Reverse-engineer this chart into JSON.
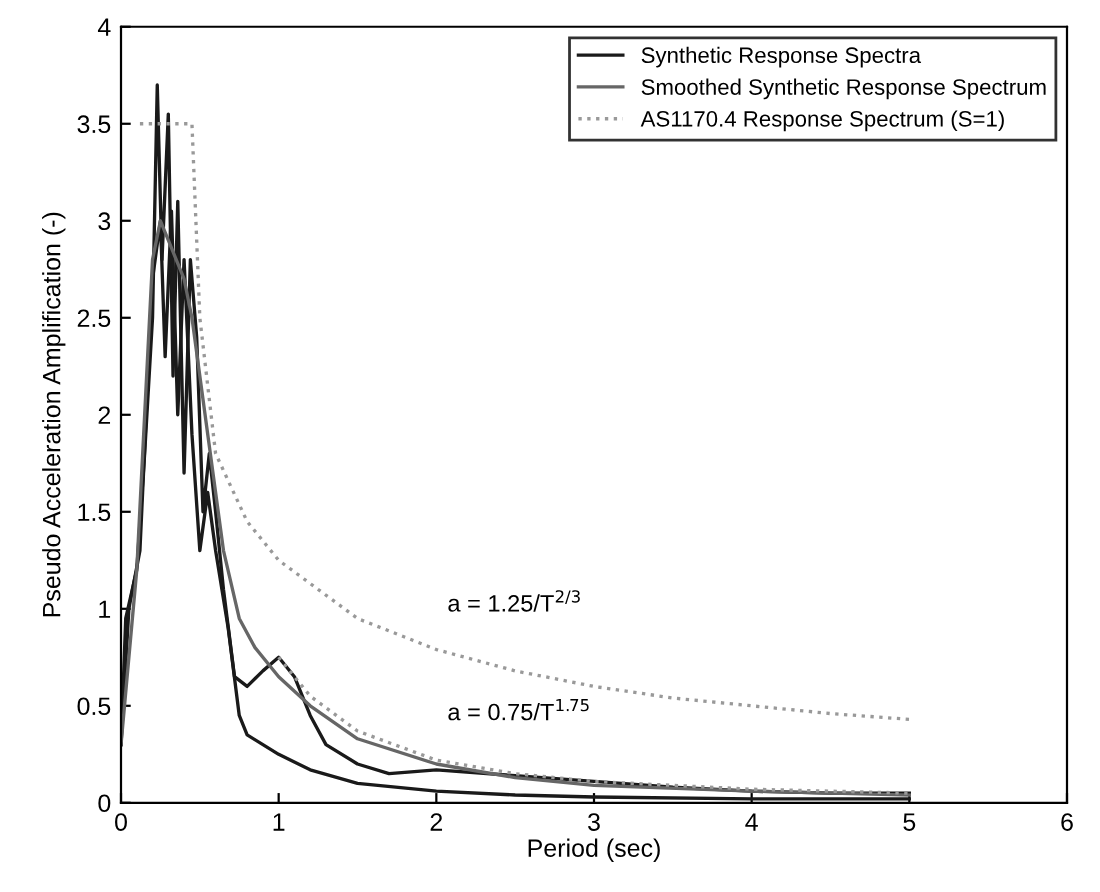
{
  "chart_data": {
    "type": "line",
    "xlabel": "Period (sec)",
    "ylabel": "Pseudo Acceleration Amplification (-)",
    "xlim": [
      0,
      6
    ],
    "ylim": [
      0,
      4
    ],
    "xticks": [
      0,
      1,
      2,
      3,
      4,
      5,
      6
    ],
    "yticks": [
      0,
      0.5,
      1,
      1.5,
      2,
      2.5,
      3,
      3.5,
      4
    ],
    "grid": false,
    "legend": "top right",
    "marker": "none",
    "series": [
      {
        "name": "Synthetic Response Spectra",
        "color": "#1a1a1a",
        "line_style": "solid",
        "x": [
          0,
          0.03,
          0.1,
          0.15,
          0.2,
          0.23,
          0.26,
          0.3,
          0.33,
          0.36,
          0.4,
          0.44,
          0.48,
          0.52,
          0.56,
          0.6,
          0.65,
          0.72,
          0.8,
          0.9,
          1.0,
          1.1,
          1.2,
          1.3,
          1.5,
          1.7,
          2.0,
          2.5,
          3.0,
          3.5,
          4.0,
          4.5,
          5.0
        ],
        "values": [
          0.3,
          0.95,
          1.2,
          1.8,
          2.5,
          3.7,
          2.8,
          3.55,
          2.2,
          3.1,
          1.7,
          2.8,
          2.4,
          1.5,
          1.8,
          1.5,
          1.1,
          0.65,
          0.6,
          0.68,
          0.75,
          0.65,
          0.45,
          0.3,
          0.2,
          0.15,
          0.17,
          0.14,
          0.11,
          0.08,
          0.06,
          0.05,
          0.05
        ]
      },
      {
        "color": "#1a1a1a",
        "line_style": "solid",
        "x": [
          0,
          0.05,
          0.12,
          0.2,
          0.25,
          0.28,
          0.32,
          0.36,
          0.4,
          0.45,
          0.5,
          0.55,
          0.6,
          0.68,
          0.75,
          0.8,
          0.9,
          1.0,
          1.2,
          1.5,
          2.0,
          2.5,
          3.0,
          4.0,
          5.0
        ],
        "values": [
          0.3,
          1.0,
          1.3,
          2.7,
          3.0,
          2.3,
          3.05,
          2.0,
          2.8,
          1.9,
          1.3,
          1.6,
          1.3,
          0.9,
          0.45,
          0.35,
          0.3,
          0.25,
          0.17,
          0.1,
          0.06,
          0.04,
          0.03,
          0.02,
          0.02
        ]
      },
      {
        "name": "Smoothed Synthetic Response Spectrum",
        "color": "#666666",
        "line_style": "solid",
        "x": [
          0,
          0.1,
          0.2,
          0.25,
          0.3,
          0.4,
          0.45,
          0.55,
          0.65,
          0.75,
          0.85,
          1.0,
          1.2,
          1.5,
          2.0,
          2.5,
          3.0,
          4.0,
          5.0
        ],
        "values": [
          0.3,
          1.2,
          2.8,
          3.0,
          2.9,
          2.7,
          2.5,
          1.9,
          1.3,
          0.95,
          0.8,
          0.65,
          0.5,
          0.33,
          0.2,
          0.13,
          0.09,
          0.06,
          0.04
        ]
      },
      {
        "name": "AS1170.4 Response Spectrum (S=1)",
        "color": "#999999",
        "line_style": "dotted",
        "x": [
          0.12,
          0.45,
          0.5,
          0.6,
          0.8,
          1.0,
          1.5,
          2.0,
          2.5,
          3.0,
          3.5,
          4.0,
          4.5,
          5.0
        ],
        "values": [
          3.5,
          3.5,
          2.5,
          1.8,
          1.45,
          1.25,
          0.95,
          0.79,
          0.68,
          0.6,
          0.54,
          0.5,
          0.46,
          0.43
        ]
      },
      {
        "color": "#999999",
        "line_style": "dotted",
        "x": [
          1.0,
          1.2,
          1.5,
          2.0,
          2.5,
          3.0,
          4.0,
          5.0
        ],
        "values": [
          0.75,
          0.55,
          0.37,
          0.22,
          0.15,
          0.11,
          0.07,
          0.05
        ]
      }
    ],
    "annotations": [
      "a = 1.25/T$^{2/3}$",
      "a = 0.75/T$^{1.75}$"
    ]
  }
}
